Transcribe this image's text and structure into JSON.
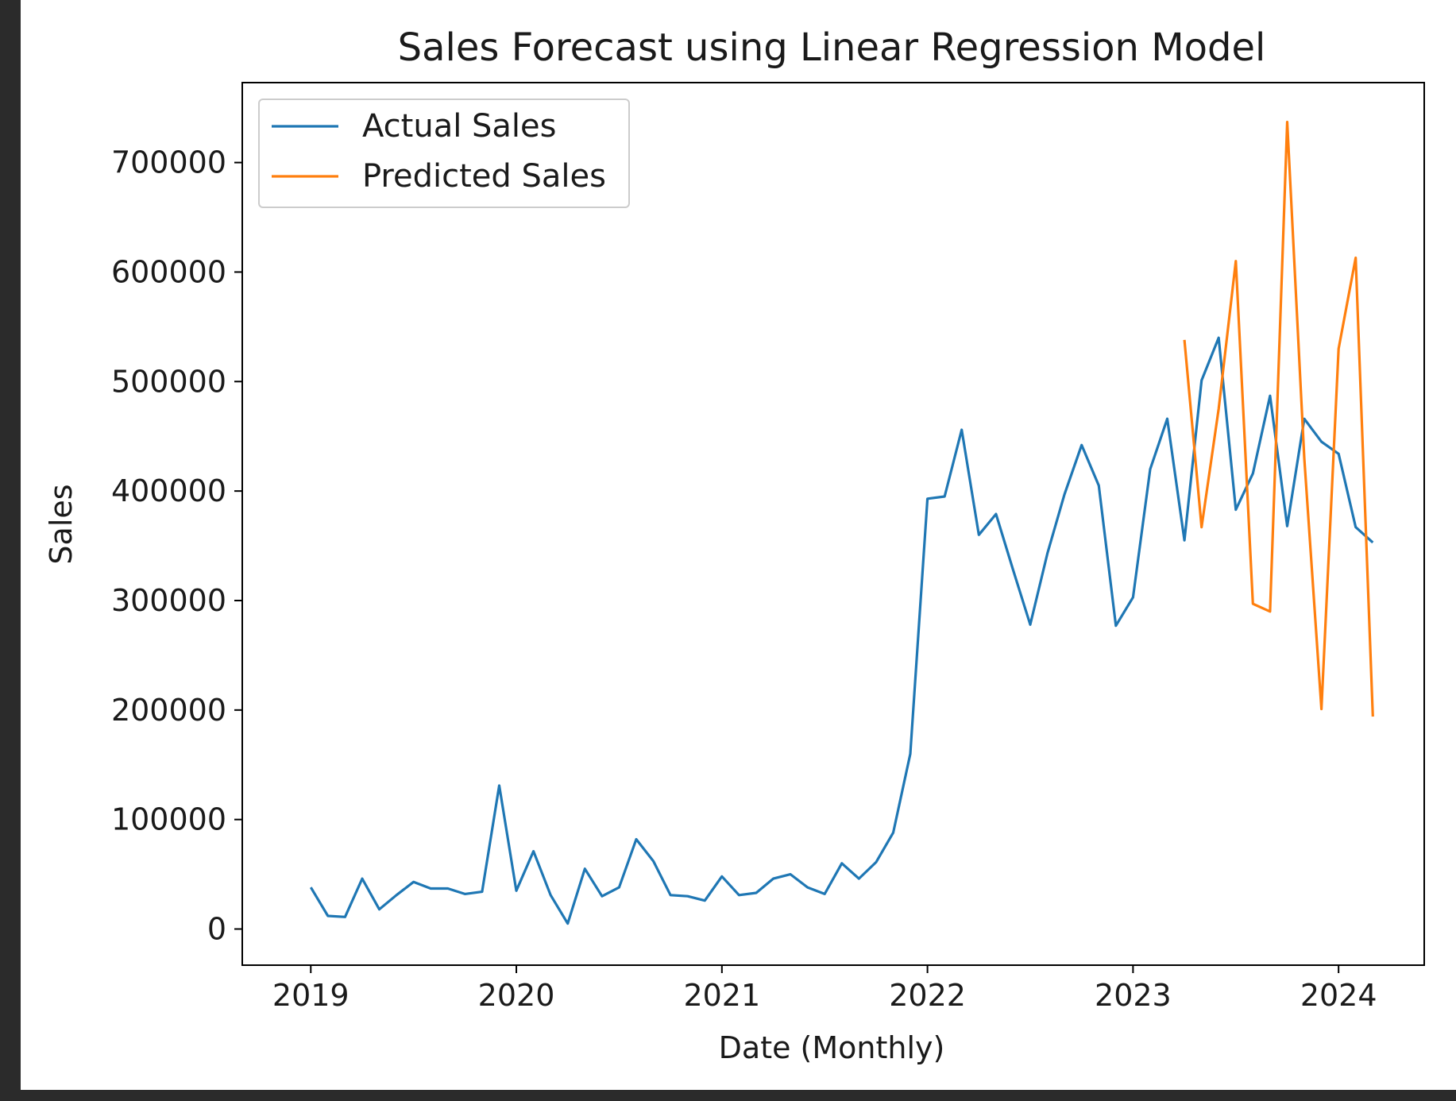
{
  "chart_data": {
    "type": "line",
    "title": "Sales Forecast using Linear Regression Model",
    "xlabel": "Date (Monthly)",
    "ylabel": "Sales",
    "x_ticks": [
      "2019",
      "2020",
      "2021",
      "2022",
      "2023",
      "2024"
    ],
    "y_ticks": [
      "0",
      "100000",
      "200000",
      "300000",
      "400000",
      "500000",
      "600000",
      "700000"
    ],
    "xlim": [
      "2018-09",
      "2024-06"
    ],
    "ylim": [
      -33000,
      773000
    ],
    "grid": false,
    "legend_position": "top-left",
    "series": [
      {
        "name": "Actual Sales",
        "color": "#1f77b4",
        "x": [
          "2019-01",
          "2019-02",
          "2019-03",
          "2019-04",
          "2019-05",
          "2019-06",
          "2019-07",
          "2019-08",
          "2019-09",
          "2019-10",
          "2019-11",
          "2019-12",
          "2020-01",
          "2020-02",
          "2020-03",
          "2020-04",
          "2020-05",
          "2020-06",
          "2020-07",
          "2020-08",
          "2020-09",
          "2020-10",
          "2020-11",
          "2020-12",
          "2021-01",
          "2021-02",
          "2021-03",
          "2021-04",
          "2021-05",
          "2021-06",
          "2021-07",
          "2021-08",
          "2021-09",
          "2021-10",
          "2021-11",
          "2021-12",
          "2022-01",
          "2022-02",
          "2022-03",
          "2022-04",
          "2022-05",
          "2022-06",
          "2022-07",
          "2022-08",
          "2022-09",
          "2022-10",
          "2022-11",
          "2022-12",
          "2023-01",
          "2023-02",
          "2023-03",
          "2023-04",
          "2023-05",
          "2023-06",
          "2023-07",
          "2023-08",
          "2023-09",
          "2023-10",
          "2023-11",
          "2023-12",
          "2024-01",
          "2024-02",
          "2024-03"
        ],
        "y": [
          38000,
          12000,
          11000,
          46000,
          18000,
          31000,
          43000,
          37000,
          37000,
          32000,
          34000,
          131000,
          35000,
          71000,
          31000,
          5000,
          55000,
          30000,
          38000,
          82000,
          62000,
          31000,
          30000,
          26000,
          48000,
          31000,
          33000,
          46000,
          50000,
          38000,
          32000,
          60000,
          46000,
          61000,
          88000,
          160000,
          393000,
          395000,
          456000,
          360000,
          379000,
          328000,
          278000,
          343000,
          397000,
          442000,
          405000,
          277000,
          303000,
          420000,
          466000,
          355000,
          501000,
          540000,
          383000,
          416000,
          487000,
          368000,
          466000,
          445000,
          434000,
          367000,
          353000
        ]
      },
      {
        "name": "Predicted Sales",
        "color": "#ff7f0e",
        "x": [
          "2023-04",
          "2023-05",
          "2023-06",
          "2023-07",
          "2023-08",
          "2023-09",
          "2023-10",
          "2023-11",
          "2023-12",
          "2024-01",
          "2024-02",
          "2024-03"
        ],
        "y": [
          538000,
          367000,
          475000,
          610000,
          297000,
          290000,
          737000,
          430000,
          201000,
          530000,
          613000,
          194000
        ]
      }
    ]
  }
}
